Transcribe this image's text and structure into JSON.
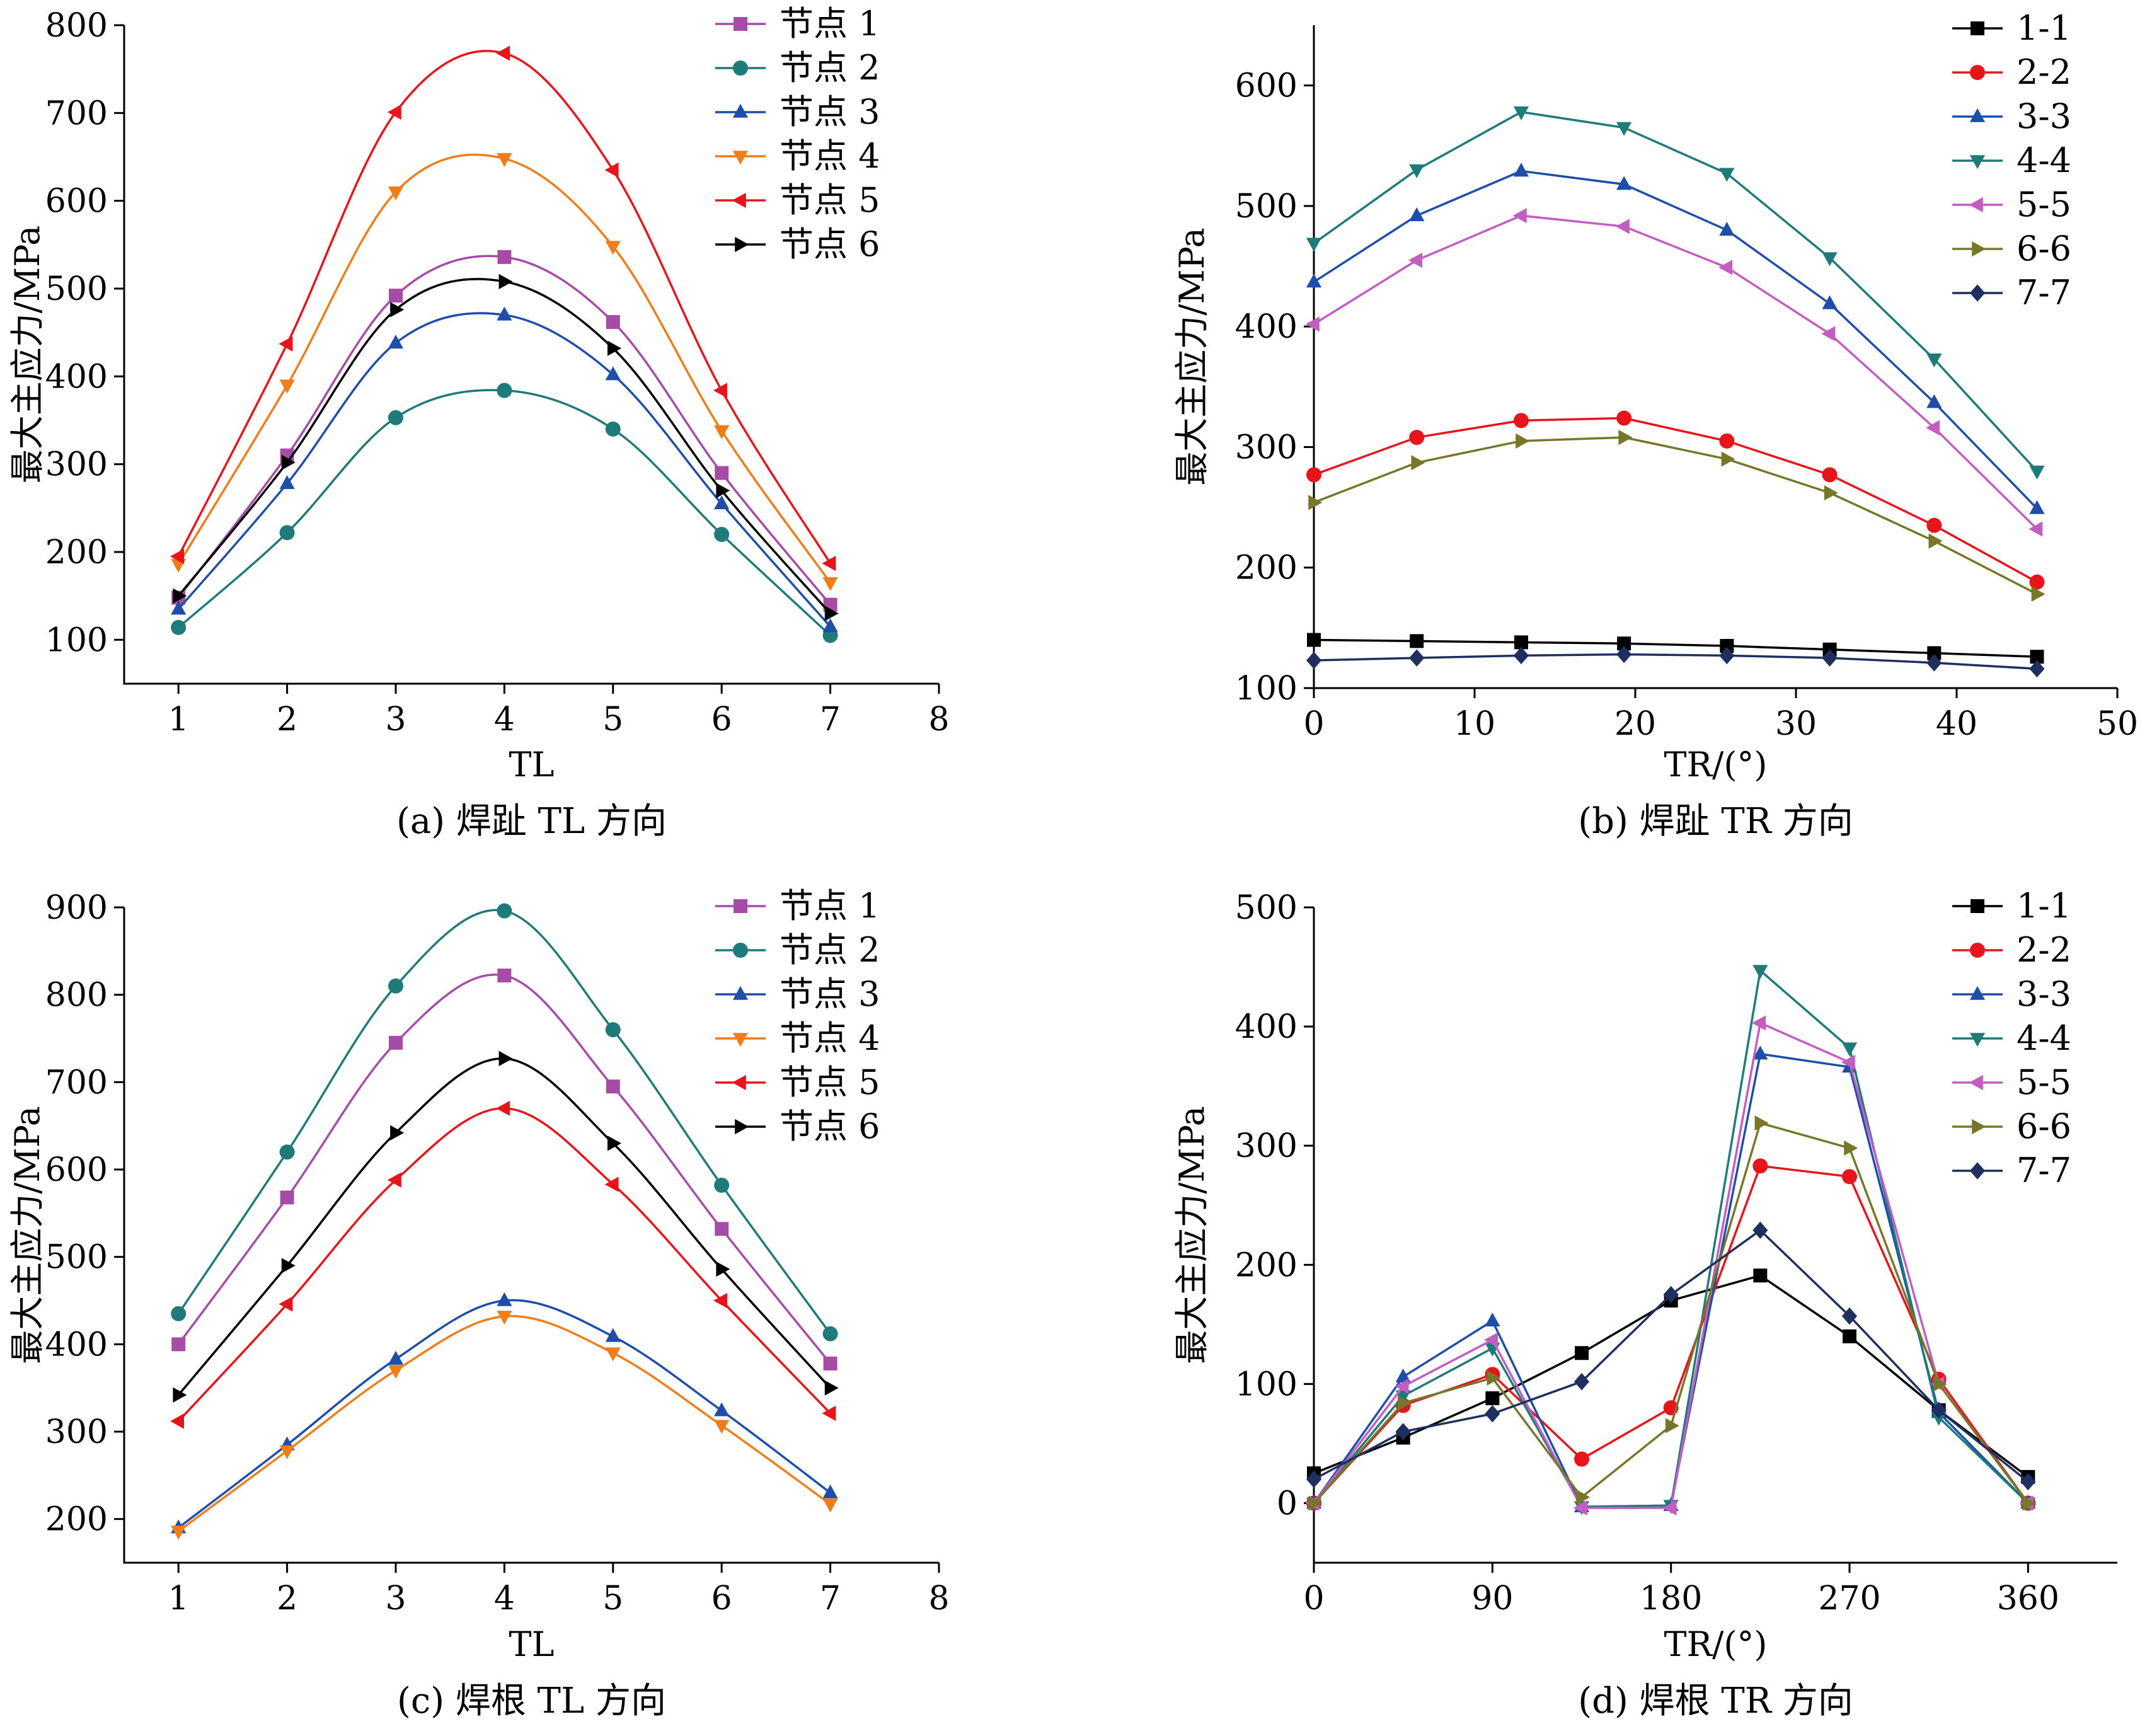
{
  "chart_data": [
    {
      "type": "line",
      "caption": "(a)  焊趾 TL 方向",
      "xlabel": "TL",
      "ylabel": "最大主应力/MPa",
      "xlim": [
        0.5,
        8
      ],
      "ylim": [
        50,
        800
      ],
      "xticks": [
        1,
        2,
        3,
        4,
        5,
        6,
        7,
        8
      ],
      "yticks": [
        100,
        200,
        300,
        400,
        500,
        600,
        700,
        800
      ],
      "smooth": true,
      "x": [
        1,
        2,
        3,
        4,
        5,
        6,
        7
      ],
      "legend_position": "top-right",
      "series": [
        {
          "name": "节点 1",
          "color": "#a64ca6",
          "marker": "square",
          "values": [
            148,
            310,
            492,
            536,
            462,
            290,
            140
          ]
        },
        {
          "name": "节点 2",
          "color": "#1f7a7a",
          "marker": "circle",
          "values": [
            114,
            222,
            353,
            384,
            340,
            220,
            105
          ]
        },
        {
          "name": "节点 3",
          "color": "#1f4eaa",
          "marker": "triangle-up",
          "values": [
            135,
            278,
            438,
            470,
            402,
            255,
            115
          ]
        },
        {
          "name": "节点 4",
          "color": "#ef7d1a",
          "marker": "triangle-down",
          "values": [
            186,
            390,
            610,
            648,
            548,
            338,
            165
          ]
        },
        {
          "name": "节点 5",
          "color": "#e8141c",
          "marker": "triangle-left",
          "values": [
            195,
            437,
            701,
            768,
            635,
            384,
            187
          ]
        },
        {
          "name": "节点 6",
          "color": "#000000",
          "marker": "triangle-right",
          "values": [
            150,
            302,
            476,
            508,
            432,
            270,
            130
          ]
        }
      ]
    },
    {
      "type": "line",
      "caption": "(b)  焊趾 TR 方向",
      "xlabel": "TR/(°)",
      "ylabel": "最大主应力/MPa",
      "xlim": [
        0,
        50
      ],
      "ylim": [
        100,
        650
      ],
      "xticks": [
        0,
        10,
        20,
        30,
        40,
        50
      ],
      "yticks": [
        100,
        200,
        300,
        400,
        500,
        600
      ],
      "smooth": false,
      "x": [
        0,
        6.4,
        12.9,
        19.3,
        25.7,
        32.1,
        38.6,
        45
      ],
      "legend_position": "top-right",
      "series": [
        {
          "name": "1-1",
          "color": "#000000",
          "marker": "square",
          "values": [
            140,
            139,
            138,
            137,
            135,
            132,
            129,
            126
          ]
        },
        {
          "name": "2-2",
          "color": "#e8141c",
          "marker": "circle",
          "values": [
            277,
            308,
            322,
            324,
            305,
            277,
            235,
            188
          ]
        },
        {
          "name": "3-3",
          "color": "#1f4eaa",
          "marker": "triangle-up",
          "values": [
            437,
            492,
            529,
            518,
            480,
            419,
            337,
            249
          ]
        },
        {
          "name": "4-4",
          "color": "#1f7a7a",
          "marker": "triangle-down",
          "values": [
            469,
            530,
            578,
            565,
            527,
            457,
            373,
            280
          ]
        },
        {
          "name": "5-5",
          "color": "#c25dc2",
          "marker": "triangle-left",
          "values": [
            402,
            455,
            492,
            483,
            449,
            394,
            316,
            232
          ]
        },
        {
          "name": "6-6",
          "color": "#77772a",
          "marker": "triangle-right",
          "values": [
            254,
            287,
            305,
            308,
            290,
            262,
            222,
            178
          ]
        },
        {
          "name": "7-7",
          "color": "#1f2f5f",
          "marker": "diamond",
          "values": [
            123,
            125,
            127,
            128,
            127,
            125,
            121,
            116
          ]
        }
      ]
    },
    {
      "type": "line",
      "caption": "(c)  焊根 TL 方向",
      "xlabel": "TL",
      "ylabel": "最大主应力/MPa",
      "xlim": [
        0.5,
        8
      ],
      "ylim": [
        150,
        900
      ],
      "xticks": [
        1,
        2,
        3,
        4,
        5,
        6,
        7,
        8
      ],
      "yticks": [
        200,
        300,
        400,
        500,
        600,
        700,
        800,
        900
      ],
      "smooth": true,
      "x": [
        1,
        2,
        3,
        4,
        5,
        6,
        7
      ],
      "legend_position": "top-right",
      "series": [
        {
          "name": "节点 1",
          "color": "#a64ca6",
          "marker": "square",
          "values": [
            400,
            568,
            745,
            822,
            695,
            532,
            378
          ]
        },
        {
          "name": "节点 2",
          "color": "#1f7a7a",
          "marker": "circle",
          "values": [
            435,
            620,
            810,
            896,
            760,
            582,
            412
          ]
        },
        {
          "name": "节点 3",
          "color": "#1f4eaa",
          "marker": "triangle-up",
          "values": [
            190,
            285,
            383,
            450,
            409,
            324,
            230
          ]
        },
        {
          "name": "节点 4",
          "color": "#ef7d1a",
          "marker": "triangle-down",
          "values": [
            186,
            278,
            370,
            432,
            390,
            307,
            217
          ]
        },
        {
          "name": "节点 5",
          "color": "#e8141c",
          "marker": "triangle-left",
          "values": [
            312,
            446,
            588,
            670,
            583,
            450,
            321
          ]
        },
        {
          "name": "节点 6",
          "color": "#000000",
          "marker": "triangle-right",
          "values": [
            342,
            490,
            642,
            727,
            630,
            486,
            350
          ]
        }
      ]
    },
    {
      "type": "line",
      "caption": "(d)  焊根 TR 方向",
      "xlabel": "TR/(°)",
      "ylabel": "最大主应力/MPa",
      "xlim": [
        0,
        405
      ],
      "ylim": [
        -50,
        500
      ],
      "xticks": [
        0,
        90,
        180,
        270,
        360
      ],
      "yticks": [
        0,
        100,
        200,
        300,
        400,
        500
      ],
      "smooth": false,
      "x": [
        0,
        45,
        90,
        135,
        180,
        225,
        270,
        315,
        360
      ],
      "legend_position": "top-right",
      "series": [
        {
          "name": "1-1",
          "color": "#000000",
          "marker": "square",
          "values": [
            25,
            55,
            88,
            126,
            170,
            191,
            140,
            78,
            22
          ]
        },
        {
          "name": "2-2",
          "color": "#e8141c",
          "marker": "circle",
          "values": [
            0,
            82,
            108,
            37,
            80,
            283,
            274,
            104,
            0
          ]
        },
        {
          "name": "3-3",
          "color": "#1f4eaa",
          "marker": "triangle-up",
          "values": [
            0,
            106,
            153,
            -3,
            -2,
            377,
            366,
            76,
            0
          ]
        },
        {
          "name": "4-4",
          "color": "#1f7a7a",
          "marker": "triangle-down",
          "values": [
            0,
            90,
            130,
            -3,
            -2,
            447,
            382,
            72,
            0
          ]
        },
        {
          "name": "5-5",
          "color": "#c25dc2",
          "marker": "triangle-left",
          "values": [
            0,
            98,
            137,
            -4,
            -4,
            403,
            370,
            100,
            0
          ]
        },
        {
          "name": "6-6",
          "color": "#77772a",
          "marker": "triangle-right",
          "values": [
            0,
            84,
            105,
            5,
            65,
            319,
            298,
            100,
            0
          ]
        },
        {
          "name": "7-7",
          "color": "#1f2f5f",
          "marker": "diamond",
          "values": [
            20,
            60,
            75,
            102,
            175,
            229,
            157,
            78,
            18
          ]
        }
      ]
    }
  ]
}
